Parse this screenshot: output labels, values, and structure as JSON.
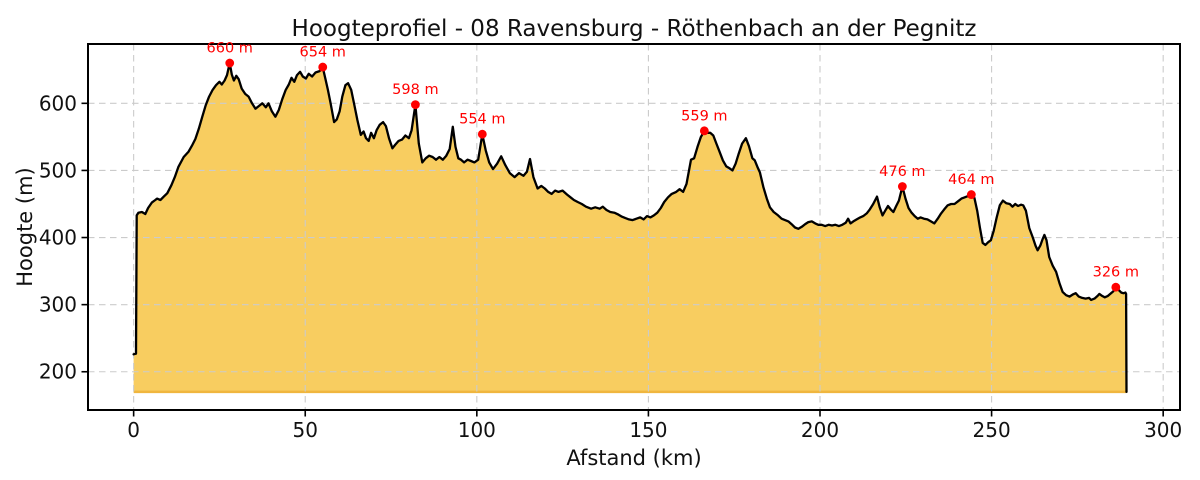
{
  "chart_data": {
    "type": "area",
    "title": "Hoogteprofiel - 08 Ravensburg - Röthenbach an der Pegnitz",
    "xlabel": "Afstand (km)",
    "ylabel": "Hoogte (m)",
    "xlim": [
      -13.3,
      304.9
    ],
    "ylim": [
      143,
      688.4
    ],
    "xticks": [
      0,
      50,
      100,
      150,
      200,
      250,
      300
    ],
    "yticks": [
      200,
      300,
      400,
      500,
      600
    ],
    "grid": true,
    "legend": false,
    "baseline_m": 170,
    "colors": {
      "fill": "#F8CD60",
      "fill_edge": "#F0B63E",
      "line": "#000000",
      "marker": "#FF0000",
      "annotation": "#FF0000",
      "grid": "#CBCBCB",
      "frame": "#000000"
    },
    "peak_annotations": [
      {
        "km": 28,
        "m": 660,
        "label": "660 m"
      },
      {
        "km": 55.1,
        "m": 654,
        "label": "654 m"
      },
      {
        "km": 82.1,
        "m": 598,
        "label": "598 m"
      },
      {
        "km": 101.6,
        "m": 554,
        "label": "554 m"
      },
      {
        "km": 166.3,
        "m": 559,
        "label": "559 m"
      },
      {
        "km": 224,
        "m": 476,
        "label": "476 m"
      },
      {
        "km": 244.1,
        "m": 464,
        "label": "464 m"
      },
      {
        "km": 286.2,
        "m": 326,
        "label": "326 m"
      }
    ],
    "points": [
      [
        0,
        226
      ],
      [
        0.7,
        227
      ],
      [
        0.9,
        433
      ],
      [
        1.4,
        437
      ],
      [
        2.4,
        438
      ],
      [
        3.4,
        435
      ],
      [
        4.2,
        444
      ],
      [
        5.3,
        452
      ],
      [
        6.3,
        456
      ],
      [
        6.8,
        458
      ],
      [
        7.8,
        456
      ],
      [
        8.8,
        461
      ],
      [
        9.8,
        466
      ],
      [
        11,
        478
      ],
      [
        12,
        490
      ],
      [
        13,
        505
      ],
      [
        14.6,
        520
      ],
      [
        16,
        528
      ],
      [
        17,
        537
      ],
      [
        18,
        547
      ],
      [
        19,
        562
      ],
      [
        20,
        580
      ],
      [
        21,
        597
      ],
      [
        22,
        610
      ],
      [
        23,
        620
      ],
      [
        24,
        627
      ],
      [
        25,
        632
      ],
      [
        25.7,
        628
      ],
      [
        26.5,
        634
      ],
      [
        27.2,
        642
      ],
      [
        28,
        660
      ],
      [
        28.6,
        643
      ],
      [
        29.2,
        634
      ],
      [
        29.9,
        641
      ],
      [
        30.6,
        636
      ],
      [
        31.5,
        622
      ],
      [
        32.5,
        614
      ],
      [
        33.5,
        610
      ],
      [
        34.5,
        600
      ],
      [
        35.5,
        592
      ],
      [
        36.5,
        596
      ],
      [
        37.5,
        600
      ],
      [
        38.5,
        594
      ],
      [
        39.3,
        600
      ],
      [
        40.3,
        588
      ],
      [
        41.3,
        580
      ],
      [
        42.3,
        590
      ],
      [
        43.3,
        606
      ],
      [
        44.3,
        620
      ],
      [
        45.2,
        628
      ],
      [
        46,
        638
      ],
      [
        46.8,
        632
      ],
      [
        47.6,
        642
      ],
      [
        48.5,
        647
      ],
      [
        49.3,
        640
      ],
      [
        50.2,
        637
      ],
      [
        51,
        644
      ],
      [
        52,
        640
      ],
      [
        53,
        646
      ],
      [
        54.2,
        648
      ],
      [
        55.1,
        654
      ],
      [
        55.9,
        636
      ],
      [
        56.6,
        620
      ],
      [
        57.4,
        600
      ],
      [
        58.4,
        572
      ],
      [
        59.2,
        576
      ],
      [
        60,
        588
      ],
      [
        60.8,
        610
      ],
      [
        61.7,
        627
      ],
      [
        62.5,
        630
      ],
      [
        63.4,
        620
      ],
      [
        64.2,
        600
      ],
      [
        65.2,
        575
      ],
      [
        66.2,
        553
      ],
      [
        67,
        558
      ],
      [
        67.7,
        548
      ],
      [
        68.5,
        544
      ],
      [
        69.2,
        556
      ],
      [
        70,
        548
      ],
      [
        70.8,
        560
      ],
      [
        71.7,
        568
      ],
      [
        72.7,
        572
      ],
      [
        73.5,
        566
      ],
      [
        74.4,
        548
      ],
      [
        75.4,
        533
      ],
      [
        76.2,
        538
      ],
      [
        77.2,
        544
      ],
      [
        78.2,
        546
      ],
      [
        79.2,
        552
      ],
      [
        80.2,
        548
      ],
      [
        81,
        560
      ],
      [
        82.1,
        598
      ],
      [
        83.1,
        540
      ],
      [
        84.1,
        512
      ],
      [
        85.1,
        518
      ],
      [
        86.1,
        522
      ],
      [
        87.1,
        520
      ],
      [
        88.1,
        516
      ],
      [
        89.1,
        520
      ],
      [
        90.1,
        516
      ],
      [
        91.1,
        522
      ],
      [
        92.1,
        532
      ],
      [
        93,
        565
      ],
      [
        93.8,
        535
      ],
      [
        94.6,
        518
      ],
      [
        95.4,
        516
      ],
      [
        96.3,
        512
      ],
      [
        97.3,
        516
      ],
      [
        98.3,
        514
      ],
      [
        99.3,
        512
      ],
      [
        100.4,
        516
      ],
      [
        101.6,
        554
      ],
      [
        102.6,
        530
      ],
      [
        103.6,
        512
      ],
      [
        104.7,
        502
      ],
      [
        105.9,
        510
      ],
      [
        107.1,
        521
      ],
      [
        108.3,
        508
      ],
      [
        109.6,
        496
      ],
      [
        111,
        490
      ],
      [
        112.3,
        496
      ],
      [
        113.6,
        492
      ],
      [
        114.6,
        498
      ],
      [
        115.5,
        517
      ],
      [
        116.5,
        490
      ],
      [
        117.7,
        473
      ],
      [
        118.8,
        477
      ],
      [
        119.8,
        473
      ],
      [
        120.8,
        468
      ],
      [
        121.8,
        465
      ],
      [
        122.8,
        470
      ],
      [
        123.8,
        468
      ],
      [
        125,
        470
      ],
      [
        126.3,
        464
      ],
      [
        127.3,
        460
      ],
      [
        128.3,
        456
      ],
      [
        129.4,
        453
      ],
      [
        130.6,
        450
      ],
      [
        131.8,
        446
      ],
      [
        133.3,
        443
      ],
      [
        134.5,
        445
      ],
      [
        135.8,
        443
      ],
      [
        136.7,
        446
      ],
      [
        137.8,
        441
      ],
      [
        138.9,
        438
      ],
      [
        140.1,
        437
      ],
      [
        141.3,
        434
      ],
      [
        142.3,
        431
      ],
      [
        143.3,
        429
      ],
      [
        144.3,
        427
      ],
      [
        145.4,
        426
      ],
      [
        146.5,
        428
      ],
      [
        147.6,
        430
      ],
      [
        148.6,
        427
      ],
      [
        149.6,
        432
      ],
      [
        150.6,
        430
      ],
      [
        151.6,
        433
      ],
      [
        152.6,
        437
      ],
      [
        153.6,
        444
      ],
      [
        154.6,
        453
      ],
      [
        155.7,
        460
      ],
      [
        156.8,
        465
      ],
      [
        158.1,
        468
      ],
      [
        159.1,
        472
      ],
      [
        160.1,
        468
      ],
      [
        161.1,
        480
      ],
      [
        162.4,
        516
      ],
      [
        163.3,
        518
      ],
      [
        164.3,
        535
      ],
      [
        165.3,
        550
      ],
      [
        166.3,
        559
      ],
      [
        167.1,
        556
      ],
      [
        168,
        556
      ],
      [
        168.9,
        552
      ],
      [
        169.8,
        540
      ],
      [
        170.7,
        528
      ],
      [
        171.7,
        515
      ],
      [
        172.7,
        506
      ],
      [
        173.7,
        503
      ],
      [
        174.5,
        500
      ],
      [
        175.4,
        510
      ],
      [
        176.3,
        525
      ],
      [
        177.3,
        540
      ],
      [
        178.4,
        548
      ],
      [
        179.3,
        536
      ],
      [
        180.3,
        518
      ],
      [
        181,
        515
      ],
      [
        181.8,
        505
      ],
      [
        182.5,
        497
      ],
      [
        183.5,
        475
      ],
      [
        184.5,
        458
      ],
      [
        185.4,
        445
      ],
      [
        186.5,
        438
      ],
      [
        187.8,
        433
      ],
      [
        188.8,
        428
      ],
      [
        189.8,
        426
      ],
      [
        190.8,
        424
      ],
      [
        191.7,
        420
      ],
      [
        192.7,
        415
      ],
      [
        193.7,
        413
      ],
      [
        194.7,
        416
      ],
      [
        195.7,
        420
      ],
      [
        196.6,
        423
      ],
      [
        197.6,
        424
      ],
      [
        198.6,
        421
      ],
      [
        199.5,
        419
      ],
      [
        200.5,
        419
      ],
      [
        201.5,
        417
      ],
      [
        202.5,
        419
      ],
      [
        203.5,
        418
      ],
      [
        204.5,
        419
      ],
      [
        205.5,
        417
      ],
      [
        206.5,
        419
      ],
      [
        207.5,
        422
      ],
      [
        208.2,
        428
      ],
      [
        208.9,
        421
      ],
      [
        209.7,
        424
      ],
      [
        210.7,
        427
      ],
      [
        211.7,
        430
      ],
      [
        212.6,
        432
      ],
      [
        213.6,
        436
      ],
      [
        214.5,
        442
      ],
      [
        215.5,
        450
      ],
      [
        216.6,
        461
      ],
      [
        217.4,
        445
      ],
      [
        218.2,
        433
      ],
      [
        219,
        440
      ],
      [
        219.8,
        447
      ],
      [
        220.6,
        442
      ],
      [
        221.4,
        438
      ],
      [
        222.2,
        447
      ],
      [
        223,
        455
      ],
      [
        224,
        476
      ],
      [
        224.9,
        458
      ],
      [
        225.8,
        444
      ],
      [
        226.7,
        437
      ],
      [
        227.6,
        432
      ],
      [
        228.5,
        428
      ],
      [
        229.3,
        430
      ],
      [
        230.3,
        428
      ],
      [
        231.3,
        427
      ],
      [
        232.3,
        424
      ],
      [
        233.3,
        421
      ],
      [
        234.3,
        428
      ],
      [
        235.3,
        436
      ],
      [
        236.2,
        442
      ],
      [
        237.2,
        448
      ],
      [
        238.2,
        450
      ],
      [
        239.2,
        450
      ],
      [
        240.2,
        454
      ],
      [
        241.2,
        458
      ],
      [
        242.2,
        460
      ],
      [
        243.2,
        462
      ],
      [
        244.1,
        464
      ],
      [
        245,
        459
      ],
      [
        245.8,
        440
      ],
      [
        246.6,
        415
      ],
      [
        247.4,
        392
      ],
      [
        248.2,
        389
      ],
      [
        249,
        393
      ],
      [
        249.8,
        396
      ],
      [
        250.6,
        410
      ],
      [
        251.5,
        430
      ],
      [
        252.4,
        448
      ],
      [
        253.3,
        455
      ],
      [
        254.3,
        451
      ],
      [
        255.3,
        450
      ],
      [
        256.1,
        446
      ],
      [
        256.9,
        450
      ],
      [
        257.7,
        447
      ],
      [
        258.6,
        449
      ],
      [
        259.2,
        448
      ],
      [
        260,
        440
      ],
      [
        261,
        414
      ],
      [
        262,
        400
      ],
      [
        262.8,
        388
      ],
      [
        263.4,
        381
      ],
      [
        264.2,
        388
      ],
      [
        264.9,
        398
      ],
      [
        265.4,
        404
      ],
      [
        266,
        396
      ],
      [
        266.8,
        371
      ],
      [
        267.8,
        358
      ],
      [
        268.8,
        349
      ],
      [
        269.8,
        332
      ],
      [
        270.7,
        319
      ],
      [
        271.7,
        314
      ],
      [
        272.7,
        312
      ],
      [
        273.6,
        315
      ],
      [
        274.5,
        317
      ],
      [
        275.4,
        312
      ],
      [
        276.4,
        310
      ],
      [
        277.4,
        309
      ],
      [
        278.4,
        310
      ],
      [
        279,
        307
      ],
      [
        280,
        309
      ],
      [
        280.9,
        313
      ],
      [
        281.4,
        316
      ],
      [
        282.2,
        313
      ],
      [
        283,
        311
      ],
      [
        283.9,
        313
      ],
      [
        284.8,
        317
      ],
      [
        285.5,
        320
      ],
      [
        286.2,
        326
      ],
      [
        287,
        322
      ],
      [
        287.8,
        318
      ],
      [
        288.5,
        317
      ],
      [
        289,
        318
      ],
      [
        289.2,
        316
      ],
      [
        289.3,
        170
      ]
    ]
  }
}
